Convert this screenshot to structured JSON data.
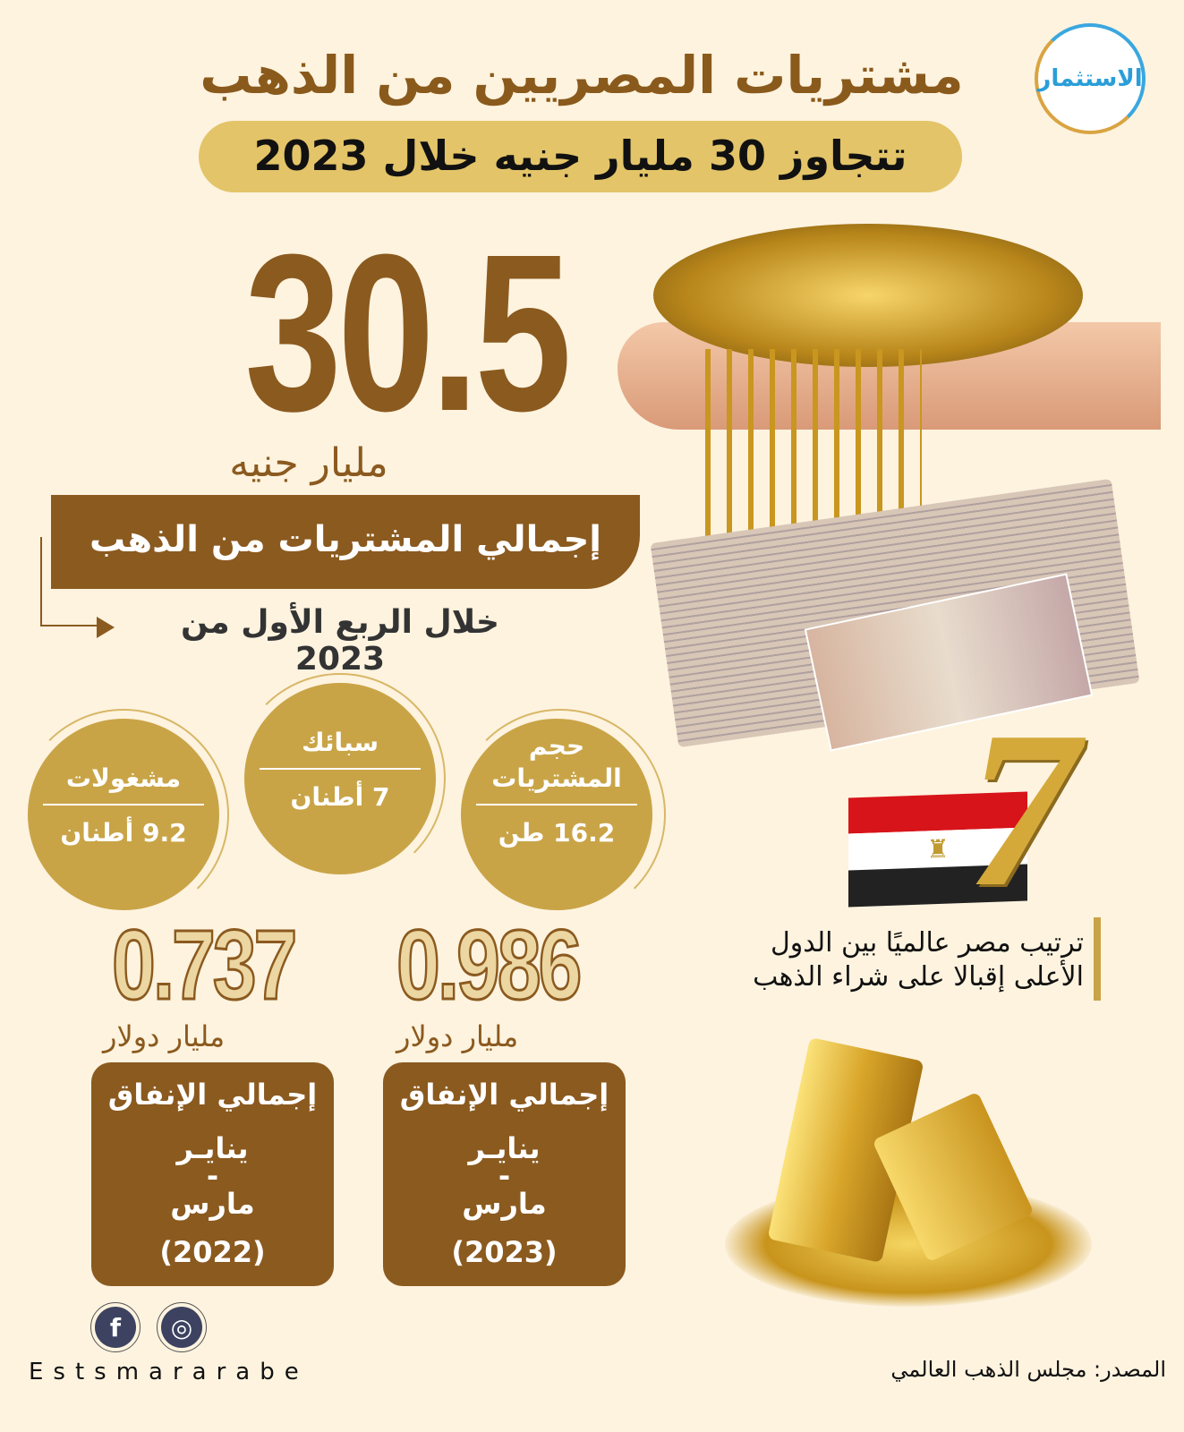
{
  "header": {
    "title": "مشتريات المصريين من الذهب",
    "subtitle": "تتجاوز 30 مليار جنيه خلال 2023",
    "logo_text": "الاستثمار"
  },
  "hero": {
    "value": "30.5",
    "unit": "مليار جنيه",
    "label": "إجمالي المشتريات من الذهب",
    "period": "خلال الربع الأول من 2023"
  },
  "circles": [
    {
      "label": "حجم المشتريات",
      "value": "16.2 طن"
    },
    {
      "label": "سبائك",
      "value": "7 أطنان"
    },
    {
      "label": "مشغولات",
      "value": "9.2 أطنان"
    }
  ],
  "spending": [
    {
      "value": "0.986",
      "unit": "مليار دولار",
      "title": "إجمالي الإنفاق",
      "from": "ينايـر",
      "dash": "-",
      "to": "مارس",
      "year": "(2023)"
    },
    {
      "value": "0.737",
      "unit": "مليار دولار",
      "title": "إجمالي الإنفاق",
      "from": "ينايـر",
      "dash": "-",
      "to": "مارس",
      "year": "(2022)"
    }
  ],
  "rank": {
    "number": "7",
    "line1": "ترتيب مصر عالميًا بين الدول",
    "line2": "الأعلى إقبالا على شراء الذهب"
  },
  "footer": {
    "source": "المصدر: مجلس الذهب العالمي",
    "brand": "Estsmararabe",
    "icons": [
      "facebook-icon",
      "dribbble-icon"
    ]
  },
  "colors": {
    "background": "#fdf3df",
    "brown": "#8b5a1f",
    "gold": "#c9a447",
    "pill": "#e3c468"
  }
}
